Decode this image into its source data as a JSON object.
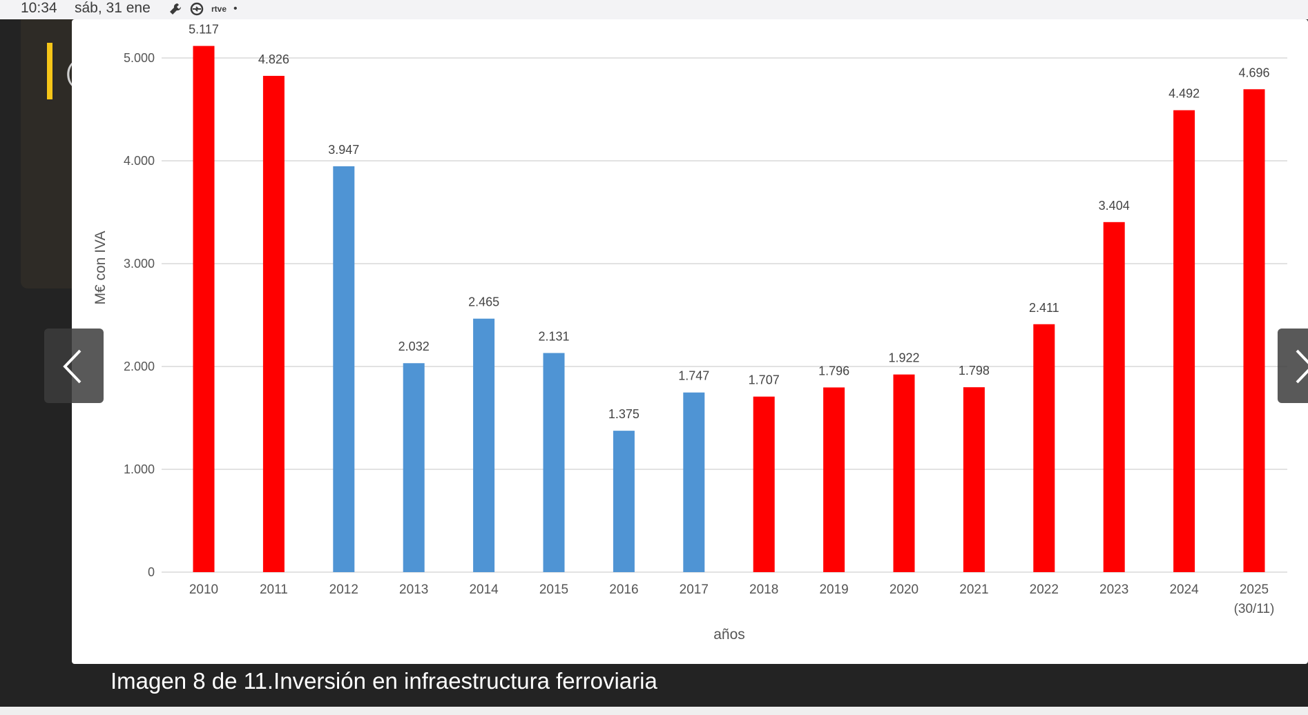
{
  "status_bar": {
    "time": "10:34",
    "date": "sáb, 31 ene",
    "icons": [
      "wrench-icon",
      "sync-icon",
      "rtve-play-icon"
    ],
    "rtve_label": "rtve"
  },
  "gallery": {
    "caption": "Imagen 8 de 11.Inversión en infraestructura ferroviaria",
    "prev_icon": "chevron-left-icon",
    "next_icon": "chevron-right-icon"
  },
  "chart_data": {
    "type": "bar",
    "categories": [
      "2010",
      "2011",
      "2012",
      "2013",
      "2014",
      "2015",
      "2016",
      "2017",
      "2018",
      "2019",
      "2020",
      "2021",
      "2022",
      "2023",
      "2024",
      "2025\n(30/11)"
    ],
    "values": [
      5117,
      4826,
      3947,
      2032,
      2465,
      2131,
      1375,
      1747,
      1707,
      1796,
      1922,
      1798,
      2411,
      3404,
      4492,
      4696
    ],
    "value_labels": [
      "5.117",
      "4.826",
      "3.947",
      "2.032",
      "2.465",
      "2.131",
      "1.375",
      "1.747",
      "1.707",
      "1.796",
      "1.922",
      "1.798",
      "2.411",
      "3.404",
      "4.492",
      "4.696"
    ],
    "bar_colors": [
      "#ff0000",
      "#ff0000",
      "#4f94d4",
      "#4f94d4",
      "#4f94d4",
      "#4f94d4",
      "#4f94d4",
      "#4f94d4",
      "#ff0000",
      "#ff0000",
      "#ff0000",
      "#ff0000",
      "#ff0000",
      "#ff0000",
      "#ff0000",
      "#ff0000"
    ],
    "xlabel": "años",
    "ylabel": "M€ con IVA",
    "ylim": [
      0,
      5000
    ],
    "yticks": [
      0,
      1000,
      2000,
      3000,
      4000,
      5000
    ],
    "ytick_labels": [
      "0",
      "1.000",
      "2.000",
      "3.000",
      "4.000",
      "5.000"
    ],
    "grid": true
  }
}
